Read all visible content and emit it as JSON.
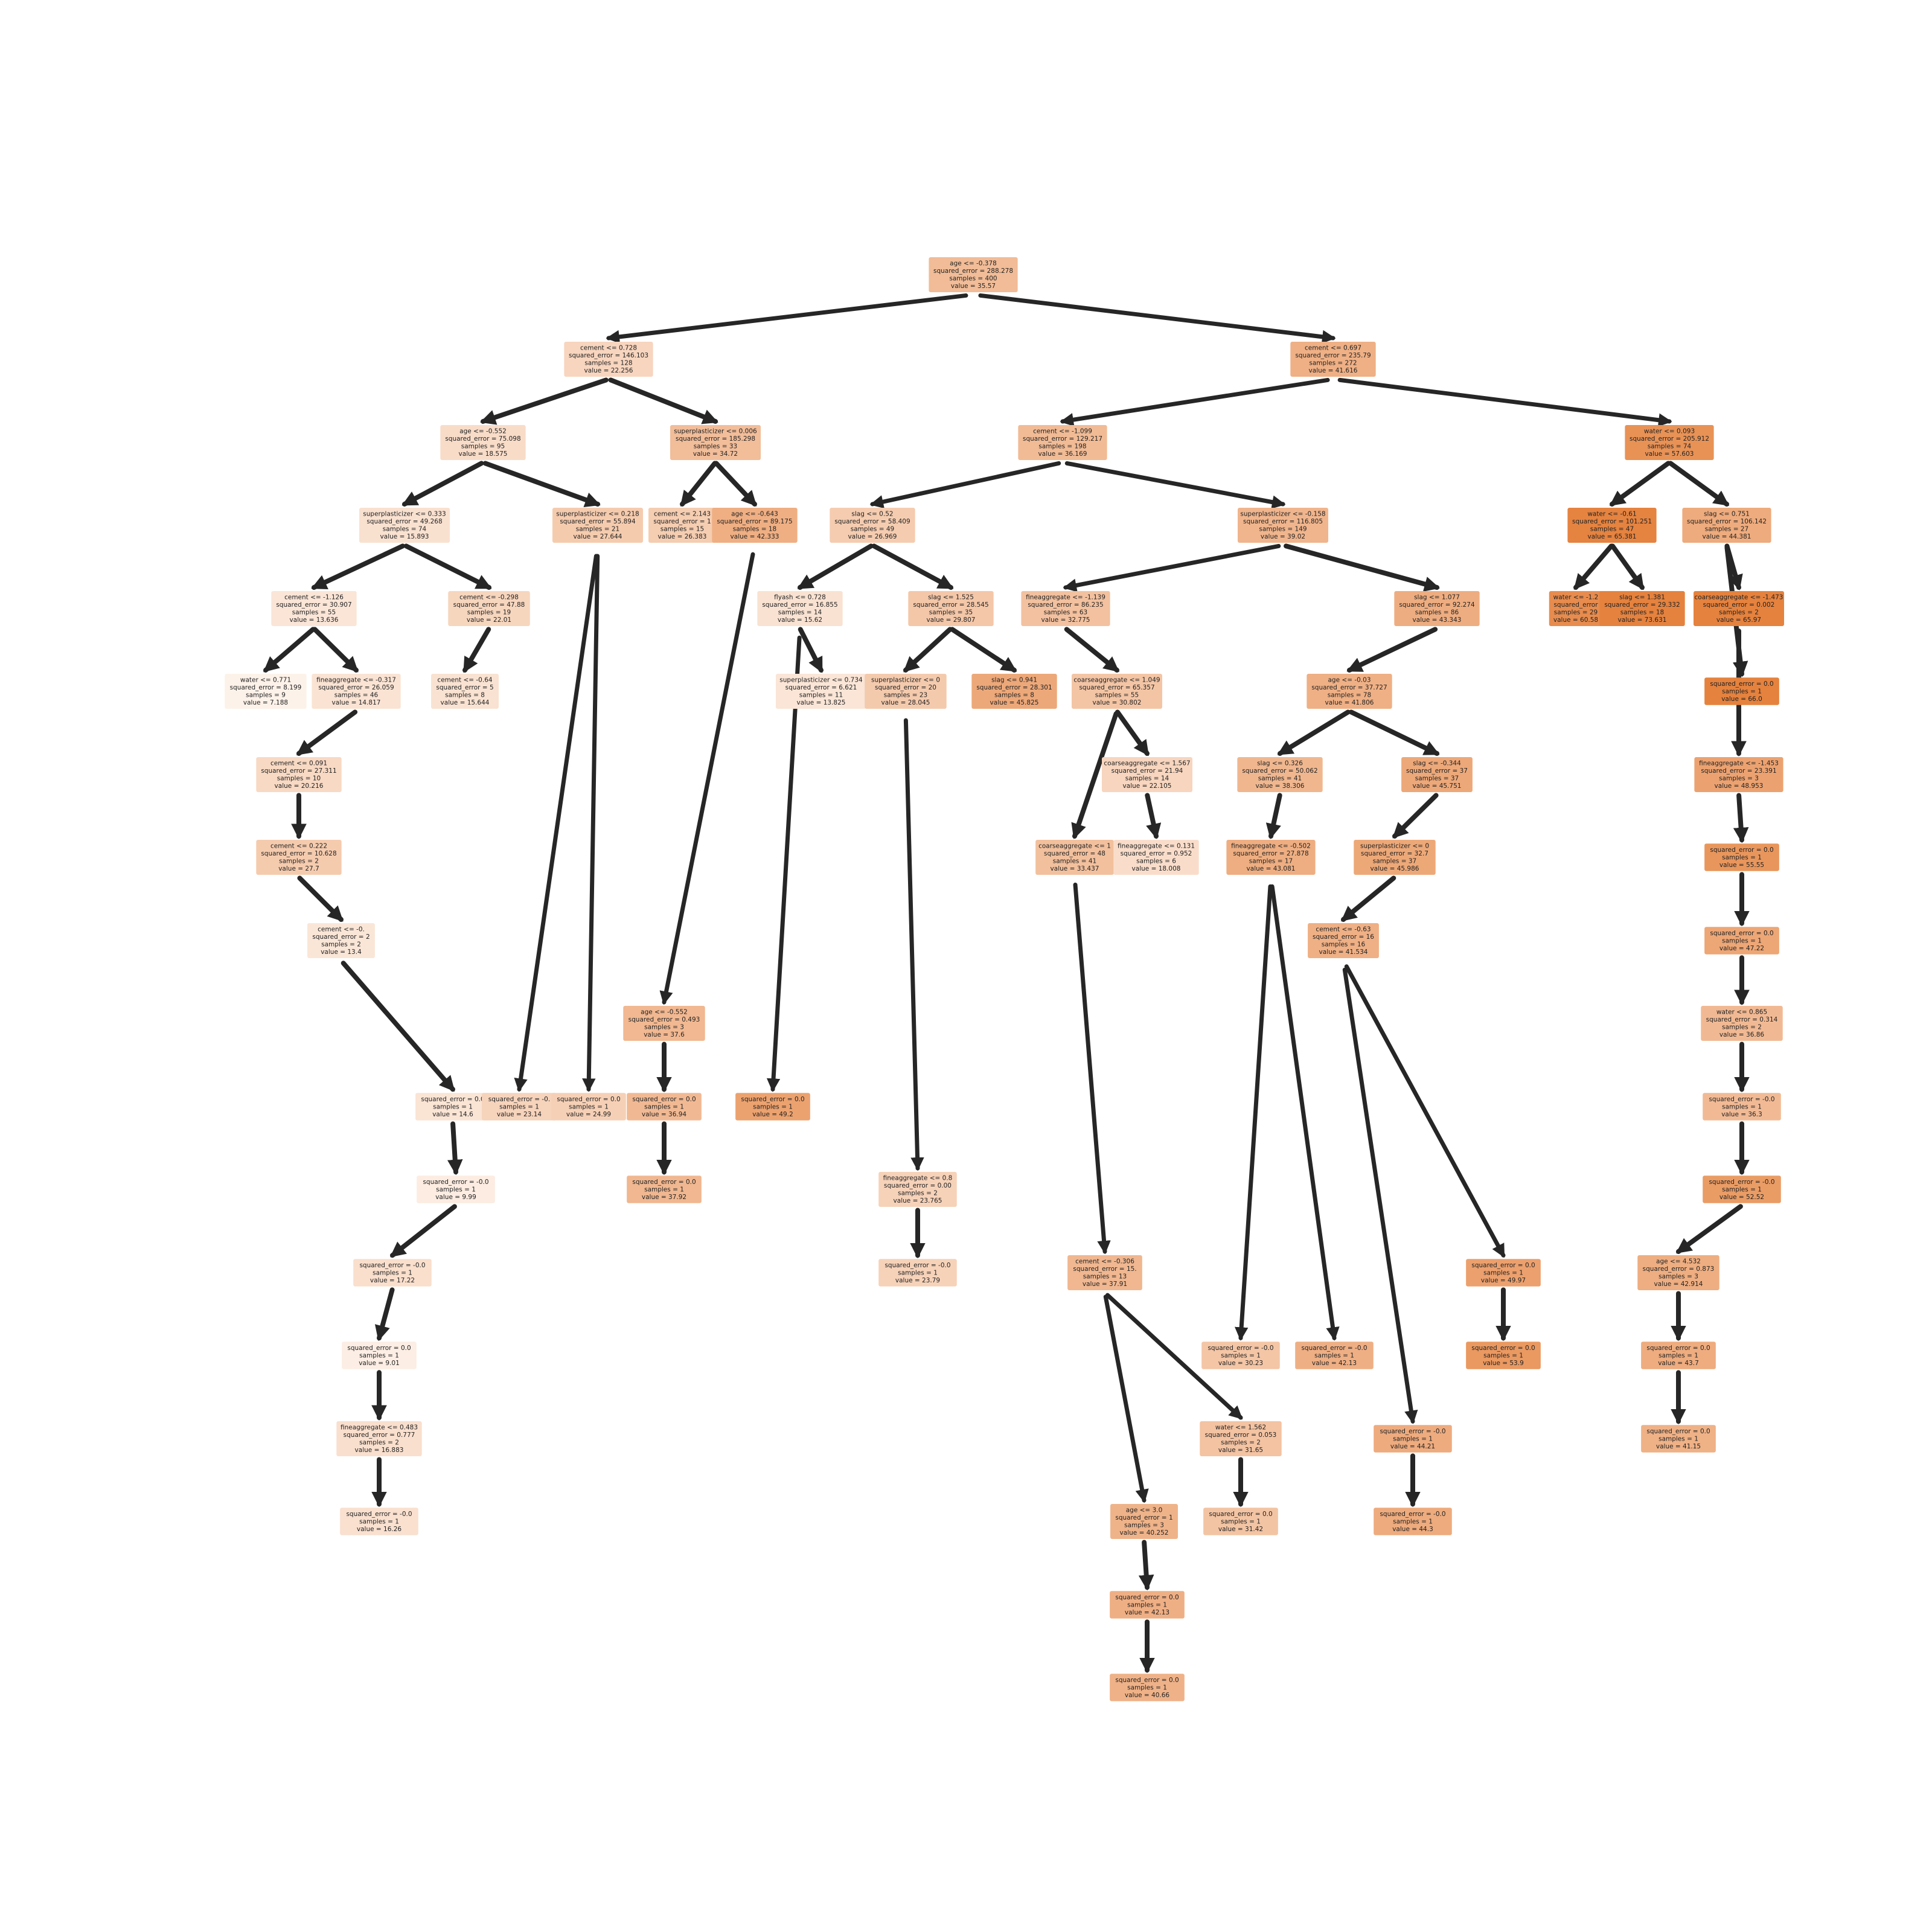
{
  "colors": {
    "edge": "#262626",
    "text": "#222222",
    "fill_low": "#fdf2ea",
    "fill_high": "#e5823e",
    "value_min": 7.0,
    "value_max": 66.0
  },
  "nodes": [
    {
      "id": "root",
      "lines": [
        "age <= -0.378",
        "squared_error = 288.278",
        "samples = 400",
        "value = 35.57"
      ],
      "value": 35.57
    },
    {
      "id": "n1",
      "parent": "root",
      "lines": [
        "cement <= 0.728",
        "squared_error = 146.103",
        "samples = 128",
        "value = 22.256"
      ],
      "value": 22.256
    },
    {
      "id": "n2",
      "parent": "root",
      "lines": [
        "cement <= 0.697",
        "squared_error = 235.79",
        "samples = 272",
        "value = 41.616"
      ],
      "value": 41.616
    },
    {
      "id": "n3",
      "parent": "n1",
      "lines": [
        "age <= -0.552",
        "squared_error = 75.098",
        "samples = 95",
        "value = 18.575"
      ],
      "value": 18.575
    },
    {
      "id": "n4",
      "parent": "n1",
      "lines": [
        "superplasticizer <= 0.006",
        "squared_error = 185.298",
        "samples = 33",
        "value = 34.72"
      ],
      "value": 34.72
    },
    {
      "id": "n5",
      "parent": "n2",
      "lines": [
        "cement <= -1.099",
        "squared_error = 129.217",
        "samples = 198",
        "value = 36.169"
      ],
      "value": 36.169
    },
    {
      "id": "n6",
      "parent": "n2",
      "lines": [
        "water <= 0.093",
        "squared_error = 205.912",
        "samples = 74",
        "value = 57.603"
      ],
      "value": 57.603
    },
    {
      "id": "n7",
      "parent": "n3",
      "lines": [
        "superplasticizer <= 0.333",
        "squared_error = 49.268",
        "samples = 74",
        "value = 15.893"
      ],
      "value": 15.893
    },
    {
      "id": "n8",
      "parent": "n3",
      "lines": [
        "superplasticizer <= 0.218",
        "squared_error = 55.894",
        "samples = 21",
        "value = 27.644"
      ],
      "value": 27.644
    },
    {
      "id": "n9",
      "parent": "n4",
      "lines": [
        "cement <= 2.143",
        "squared_error = 1",
        "samples = 15",
        "value = 26.383"
      ],
      "value": 26.383
    },
    {
      "id": "n10",
      "parent": "n4",
      "lines": [
        "age <= -0.643",
        "squared_error = 89.175",
        "samples = 18",
        "value = 42.333"
      ],
      "value": 42.333
    },
    {
      "id": "n11",
      "parent": "n5",
      "lines": [
        "slag <= 0.52",
        "squared_error = 58.409",
        "samples = 49",
        "value = 26.969"
      ],
      "value": 26.969
    },
    {
      "id": "n12",
      "parent": "n5",
      "lines": [
        "superplasticizer <= -0.158",
        "squared_error = 116.805",
        "samples = 149",
        "value = 39.02"
      ],
      "value": 39.02
    },
    {
      "id": "n13",
      "parent": "n6",
      "lines": [
        "water <= -0.61",
        "squared_error = 101.251",
        "samples = 47",
        "value = 65.381"
      ],
      "value": 65.381
    },
    {
      "id": "n14",
      "parent": "n6",
      "lines": [
        "slag <= 0.751",
        "squared_error = 106.142",
        "samples = 27",
        "value = 44.381"
      ],
      "value": 44.381
    },
    {
      "id": "n15",
      "parent": "n7",
      "lines": [
        "cement <= -1.126",
        "squared_error = 30.907",
        "samples = 55",
        "value = 13.636"
      ],
      "value": 13.636
    },
    {
      "id": "n16",
      "parent": "n7",
      "lines": [
        "cement <= -0.298",
        "squared_error = 47.88",
        "samples = 19",
        "value = 22.01"
      ],
      "value": 22.01
    },
    {
      "id": "n17",
      "parent": "n11",
      "lines": [
        "flyash <= 0.728",
        "squared_error = 16.855",
        "samples = 14",
        "value = 15.62"
      ],
      "value": 15.62
    },
    {
      "id": "n18",
      "parent": "n11",
      "lines": [
        "slag <= 1.525",
        "squared_error = 28.545",
        "samples = 35",
        "value = 29.807"
      ],
      "value": 29.807
    },
    {
      "id": "n19",
      "parent": "n12",
      "lines": [
        "fineaggregate <= -1.139",
        "squared_error = 86.235",
        "samples = 63",
        "value = 32.775"
      ],
      "value": 32.775
    },
    {
      "id": "n20",
      "parent": "n12",
      "lines": [
        "slag <= 1.077",
        "squared_error = 92.274",
        "samples = 86",
        "value = 43.343"
      ],
      "value": 43.343
    },
    {
      "id": "n21",
      "parent": "n13",
      "lines": [
        "water <= -1.2",
        "squared_error",
        "samples = 29",
        "value = 60.58"
      ],
      "value": 60.58
    },
    {
      "id": "n22",
      "parent": "n13",
      "lines": [
        "slag <= 1.381",
        "squared_error = 29.332",
        "samples = 18",
        "value = 73.631"
      ],
      "value": 73.631
    },
    {
      "id": "n23",
      "parent": "n14",
      "lines": [
        "coarseaggregate <= -1.473",
        "squared_error = 0.002",
        "samples = 2",
        "value = 65.97"
      ],
      "value": 65.97
    },
    {
      "id": "n24",
      "parent": "n15",
      "lines": [
        "water <= 0.771",
        "squared_error = 8.199",
        "samples = 9",
        "value = 7.188"
      ],
      "value": 7.188
    },
    {
      "id": "n25",
      "parent": "n15",
      "lines": [
        "fineaggregate <= -0.317",
        "squared_error = 26.059",
        "samples = 46",
        "value = 14.817"
      ],
      "value": 14.817
    },
    {
      "id": "n26",
      "parent": "n16",
      "lines": [
        "cement <= -0.64",
        "squared_error = 5",
        "samples = 8",
        "value = 15.644"
      ],
      "value": 15.644
    },
    {
      "id": "n27",
      "parent": "n17",
      "lines": [
        "superplasticizer <= 0.734",
        "squared_error = 6.621",
        "samples = 11",
        "value = 13.825"
      ],
      "value": 13.825
    },
    {
      "id": "n28",
      "parent": "n18",
      "lines": [
        "superplasticizer <= 0",
        "squared_error = 20",
        "samples = 23",
        "value = 28.045"
      ],
      "value": 28.045
    },
    {
      "id": "n29",
      "parent": "n18",
      "lines": [
        "slag <= 0.941",
        "squared_error = 28.301",
        "samples = 8",
        "value = 45.825"
      ],
      "value": 45.825
    },
    {
      "id": "n30",
      "parent": "n19",
      "lines": [
        "coarseaggregate <= 1.049",
        "squared_error = 65.357",
        "samples = 55",
        "value = 30.802"
      ],
      "value": 30.802
    },
    {
      "id": "n31",
      "parent": "n20",
      "lines": [
        "age <= -0.03",
        "squared_error = 37.727",
        "samples = 78",
        "value = 41.806"
      ],
      "value": 41.806
    },
    {
      "id": "n32",
      "parent": "n14",
      "lines": [
        "squared_error = 0.0",
        "samples = 1",
        "value = 66.0"
      ],
      "value": 66.0
    },
    {
      "id": "n33",
      "parent": "n25",
      "lines": [
        "cement <= 0.091",
        "squared_error = 27.311",
        "samples = 10",
        "value = 20.216"
      ],
      "value": 20.216
    },
    {
      "id": "n34",
      "parent": "n30",
      "lines": [
        "coarseaggregate <= 1.567",
        "squared_error = 21.94",
        "samples = 14",
        "value = 22.105"
      ],
      "value": 22.105
    },
    {
      "id": "n35",
      "parent": "n31",
      "lines": [
        "slag <= 0.326",
        "squared_error = 50.062",
        "samples = 41",
        "value = 38.306"
      ],
      "value": 38.306
    },
    {
      "id": "n36",
      "parent": "n31",
      "lines": [
        "slag <= -0.344",
        "squared_error = 37",
        "samples = 37",
        "value = 45.751"
      ],
      "value": 45.751
    },
    {
      "id": "n37",
      "parent": "n23",
      "lines": [
        "fineaggregate <= -1.453",
        "squared_error = 23.391",
        "samples = 3",
        "value = 48.953"
      ],
      "value": 48.953
    },
    {
      "id": "n38",
      "parent": "n30",
      "lines": [
        "coarseaggregate <= 1",
        "squared_error = 48",
        "samples = 41",
        "value = 33.437"
      ],
      "value": 33.437
    },
    {
      "id": "n39",
      "parent": "n33",
      "lines": [
        "cement <= 0.222",
        "squared_error = 10.628",
        "samples = 2",
        "value = 27.7"
      ],
      "value": 27.7
    },
    {
      "id": "n40",
      "parent": "n34",
      "lines": [
        "fineaggregate <= 0.131",
        "squared_error = 0.952",
        "samples = 6",
        "value = 18.008"
      ],
      "value": 18.008
    },
    {
      "id": "n41",
      "parent": "n35",
      "lines": [
        "fineaggregate <= -0.502",
        "squared_error = 27.878",
        "samples = 17",
        "value = 43.081"
      ],
      "value": 43.081
    },
    {
      "id": "n42",
      "parent": "n36",
      "lines": [
        "superplasticizer <= 0",
        "squared_error = 32.7",
        "samples = 37",
        "value = 45.986"
      ],
      "value": 45.986
    },
    {
      "id": "n43",
      "parent": "n37",
      "lines": [
        "squared_error = 0.0",
        "samples = 1",
        "value = 55.55"
      ],
      "value": 55.55
    },
    {
      "id": "n44",
      "parent": "n43",
      "lines": [
        "squared_error = 0.0",
        "samples = 1",
        "value = 47.22"
      ],
      "value": 47.22
    },
    {
      "id": "n45",
      "parent": "n42",
      "lines": [
        "cement <= -0.63",
        "squared_error = 16",
        "samples = 16",
        "value = 41.534"
      ],
      "value": 41.534
    },
    {
      "id": "n46",
      "parent": "n39",
      "lines": [
        "cement <= -0.",
        "squared_error = 2",
        "samples = 2",
        "value = 13.4"
      ],
      "value": 13.4
    },
    {
      "id": "n47",
      "parent": "n44",
      "lines": [
        "water <= 0.865",
        "squared_error = 0.314",
        "samples = 2",
        "value = 36.86"
      ],
      "value": 36.86
    },
    {
      "id": "n48",
      "parent": "n10",
      "lines": [
        "age <= -0.552",
        "squared_error = 0.493",
        "samples = 3",
        "value = 37.6"
      ],
      "value": 37.6
    },
    {
      "id": "n49",
      "parent": "n46",
      "lines": [
        "squared_error = 0.0",
        "samples = 1",
        "value = 14.6"
      ],
      "value": 14.6
    },
    {
      "id": "n50",
      "parent": "n8",
      "lines": [
        "squared_error = -0.",
        "samples = 1",
        "value = 23.14"
      ],
      "value": 23.14
    },
    {
      "id": "n51",
      "parent": "n8",
      "lines": [
        "squared_error = 0.0",
        "samples = 1",
        "value = 24.99"
      ],
      "value": 24.99
    },
    {
      "id": "n52",
      "parent": "n48",
      "lines": [
        "squared_error = 0.0",
        "samples = 1",
        "value = 36.94"
      ],
      "value": 36.94
    },
    {
      "id": "n53",
      "parent": "n17",
      "lines": [
        "squared_error = 0.0",
        "samples = 1",
        "value = 49.2"
      ],
      "value": 49.2
    },
    {
      "id": "n54",
      "parent": "n47",
      "lines": [
        "squared_error = -0.0",
        "samples = 1",
        "value = 36.3"
      ],
      "value": 36.3
    },
    {
      "id": "n55",
      "parent": "n49",
      "lines": [
        "squared_error = -0.0",
        "samples = 1",
        "value = 9.99"
      ],
      "value": 9.99
    },
    {
      "id": "n56",
      "parent": "n52",
      "lines": [
        "squared_error = 0.0",
        "samples = 1",
        "value = 37.92"
      ],
      "value": 37.92
    },
    {
      "id": "n57",
      "parent": "n28",
      "lines": [
        "fineaggregate <= 0.8",
        "squared_error = 0.00",
        "samples = 2",
        "value = 23.765"
      ],
      "value": 23.765
    },
    {
      "id": "n58",
      "parent": "n54",
      "lines": [
        "squared_error = -0.0",
        "samples = 1",
        "value = 52.52"
      ],
      "value": 52.52
    },
    {
      "id": "n59",
      "parent": "n55",
      "lines": [
        "squared_error = -0.0",
        "samples = 1",
        "value = 17.22"
      ],
      "value": 17.22
    },
    {
      "id": "n60",
      "parent": "n57",
      "lines": [
        "squared_error = -0.0",
        "samples = 1",
        "value = 23.79"
      ],
      "value": 23.79
    },
    {
      "id": "n61",
      "parent": "n38",
      "lines": [
        "cement <= -0.306",
        "squared_error = 15.",
        "samples = 13",
        "value = 37.91"
      ],
      "value": 37.91
    },
    {
      "id": "n62",
      "parent": "n45",
      "lines": [
        "squared_error = 0.0",
        "samples = 1",
        "value = 49.97"
      ],
      "value": 49.97
    },
    {
      "id": "n63",
      "parent": "n58",
      "lines": [
        "age <= 4.532",
        "squared_error = 0.873",
        "samples = 3",
        "value = 42.914"
      ],
      "value": 42.914
    },
    {
      "id": "n64",
      "parent": "n59",
      "lines": [
        "squared_error = 0.0",
        "samples = 1",
        "value = 9.01"
      ],
      "value": 9.01
    },
    {
      "id": "n65",
      "parent": "n41",
      "lines": [
        "squared_error = -0.0",
        "samples = 1",
        "value = 30.23"
      ],
      "value": 30.23
    },
    {
      "id": "n66",
      "parent": "n41",
      "lines": [
        "squared_error = -0.0",
        "samples = 1",
        "value = 42.13"
      ],
      "value": 42.13
    },
    {
      "id": "n67",
      "parent": "n62",
      "lines": [
        "squared_error = 0.0",
        "samples = 1",
        "value = 53.9"
      ],
      "value": 53.9
    },
    {
      "id": "n68",
      "parent": "n63",
      "lines": [
        "squared_error = 0.0",
        "samples = 1",
        "value = 43.7"
      ],
      "value": 43.7
    },
    {
      "id": "n69",
      "parent": "n64",
      "lines": [
        "fineaggregate <= 0.483",
        "squared_error = 0.777",
        "samples = 2",
        "value = 16.883"
      ],
      "value": 16.883
    },
    {
      "id": "n70",
      "parent": "n61",
      "lines": [
        "water <= 1.562",
        "squared_error = 0.053",
        "samples = 2",
        "value = 31.65"
      ],
      "value": 31.65
    },
    {
      "id": "n71",
      "parent": "n45",
      "lines": [
        "squared_error = -0.0",
        "samples = 1",
        "value = 44.21"
      ],
      "value": 44.21
    },
    {
      "id": "n72",
      "parent": "n68",
      "lines": [
        "squared_error = 0.0",
        "samples = 1",
        "value = 41.15"
      ],
      "value": 41.15
    },
    {
      "id": "n73",
      "parent": "n69",
      "lines": [
        "squared_error = -0.0",
        "samples = 1",
        "value = 16.26"
      ],
      "value": 16.26
    },
    {
      "id": "n74",
      "parent": "n61",
      "lines": [
        "age <= 3.0",
        "squared_error = 1",
        "samples = 3",
        "value = 40.252"
      ],
      "value": 40.252
    },
    {
      "id": "n75",
      "parent": "n70",
      "lines": [
        "squared_error = 0.0",
        "samples = 1",
        "value = 31.42"
      ],
      "value": 31.42
    },
    {
      "id": "n76",
      "parent": "n71",
      "lines": [
        "squared_error = -0.0",
        "samples = 1",
        "value = 44.3"
      ],
      "value": 44.3
    },
    {
      "id": "n77",
      "parent": "n74",
      "lines": [
        "squared_error = 0.0",
        "samples = 1",
        "value = 42.13"
      ],
      "value": 42.13
    },
    {
      "id": "n78",
      "parent": "n77",
      "lines": [
        "squared_error = 0.0",
        "samples = 1",
        "value = 40.66"
      ],
      "value": 40.66
    }
  ]
}
